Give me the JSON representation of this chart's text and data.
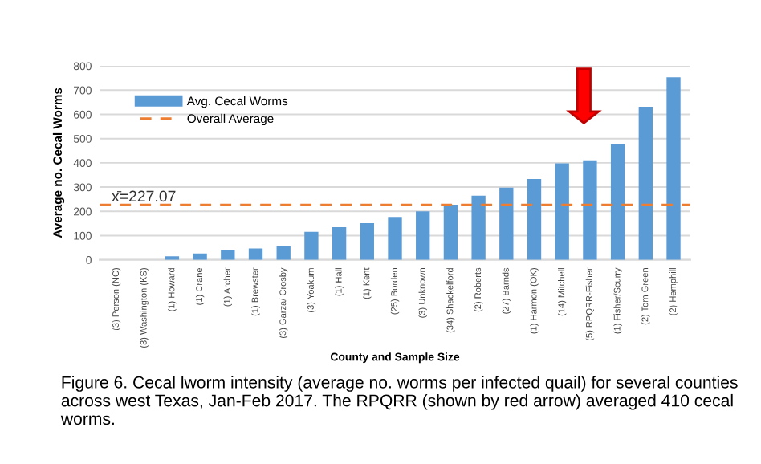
{
  "chart_data": {
    "type": "bar",
    "categories": [
      "(3) Person (NC)",
      "(3) Washington (KS)",
      "(1) Howard",
      "(1) Crane",
      "(1) Archer",
      "(1) Brewster",
      "(3) Garza/ Crosby",
      "(3) Yoakum",
      "(1) Hall",
      "(1) Kent",
      "(25) Borden",
      "(3) Unknown",
      "(34) Shackelford",
      "(2) Roberts",
      "(27) Barnds",
      "(1) Harmon (OK)",
      "(14) Mitchell",
      "(5) RPQRR-Fisher",
      "(1) Fisher/Scurry",
      "(2) Tom Green",
      "(2) Hemphill"
    ],
    "series": [
      {
        "name": "Avg. Cecal Worms",
        "color": "#5b9bd5",
        "values": [
          0,
          0,
          15,
          26,
          41,
          47,
          57,
          116,
          135,
          151,
          177,
          200,
          227,
          265,
          298,
          333,
          398,
          410,
          476,
          631,
          753
        ]
      }
    ],
    "ylabel": "Average no. Cecal Worms",
    "xlabel": "County and Sample Size",
    "ylim": [
      0,
      800
    ],
    "yticks": [
      0,
      100,
      200,
      300,
      400,
      500,
      600,
      700,
      800
    ],
    "grid": "y",
    "legend": "top left",
    "ref_lines": [
      {
        "axis": "y",
        "value": 227.07,
        "label": "Overall Average",
        "color": "#ed7d31",
        "line_style": "dashed"
      }
    ],
    "annotations": [
      "x̄=227.07",
      "Figure 6. Cecal lworm intensity (average no. worms per infected quail) for several counties across west Texas, Jan-Feb 2017. The RPQRR (shown by red arrow) averaged 410 cecal worms."
    ]
  }
}
